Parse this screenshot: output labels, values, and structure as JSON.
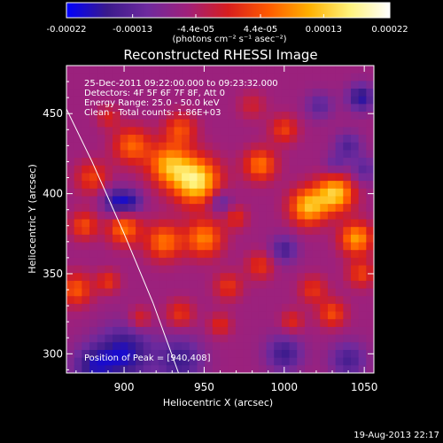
{
  "colorbar": {
    "tick_labels": [
      "-0.00022",
      "-0.00013",
      "-4.4e-05",
      "4.4e-05",
      "0.00013",
      "0.00022"
    ],
    "tick_values": [
      -0.00022,
      -0.00013,
      -4.4e-05,
      4.4e-05,
      0.00013,
      0.00022
    ],
    "range": [
      -0.00022,
      0.00022
    ],
    "unit_label": "(photons cm⁻² s⁻¹ asec⁻²)",
    "colormap": [
      "#0000ff",
      "#3a1a8c",
      "#6e2a9e",
      "#a0207a",
      "#d81e1e",
      "#ff5a00",
      "#ffb000",
      "#fff27a",
      "#ffffff"
    ]
  },
  "chart_data": {
    "type": "heatmap",
    "title": "Reconstructed RHESSI Image",
    "xlabel": "Heliocentric X (arcsec)",
    "ylabel": "Heliocentric Y (arcsec)",
    "xlim": [
      864,
      1056
    ],
    "ylim": [
      288,
      480
    ],
    "x_ticks": [
      900,
      950,
      1000,
      1050
    ],
    "y_ticks": [
      300,
      350,
      400,
      450
    ],
    "annotations": [
      "25-Dec-2011 09:22:00.000 to 09:23:32.000",
      "Detectors: 4F 5F 6F 7F 8F, Att 0",
      "Energy Range: 25.0 - 50.0 keV",
      "Clean - Total counts: 1.86E+03"
    ],
    "peak_label": "Position of Peak = [940,408]",
    "peak_position": [
      940,
      408
    ],
    "limb_curve": [
      [
        862,
        457
      ],
      [
        880,
        420
      ],
      [
        900,
        375
      ],
      [
        918,
        332
      ],
      [
        934,
        288
      ]
    ],
    "hotspots": [
      {
        "x": 945,
        "y": 408,
        "amp": 0.00022,
        "r": 10
      },
      {
        "x": 928,
        "y": 418,
        "amp": 0.00016,
        "r": 9
      },
      {
        "x": 935,
        "y": 440,
        "amp": 0.0001,
        "r": 7
      },
      {
        "x": 905,
        "y": 430,
        "amp": 0.00012,
        "r": 8
      },
      {
        "x": 900,
        "y": 378,
        "amp": 0.00013,
        "r": 7
      },
      {
        "x": 880,
        "y": 410,
        "amp": 9e-05,
        "r": 7
      },
      {
        "x": 875,
        "y": 380,
        "amp": 0.0001,
        "r": 6
      },
      {
        "x": 870,
        "y": 340,
        "amp": 0.00011,
        "r": 7
      },
      {
        "x": 890,
        "y": 345,
        "amp": 8e-05,
        "r": 5
      },
      {
        "x": 925,
        "y": 370,
        "amp": 0.00013,
        "r": 8
      },
      {
        "x": 950,
        "y": 372,
        "amp": 0.00014,
        "r": 8
      },
      {
        "x": 965,
        "y": 342,
        "amp": 8e-05,
        "r": 6
      },
      {
        "x": 985,
        "y": 418,
        "amp": 0.00013,
        "r": 7
      },
      {
        "x": 1000,
        "y": 440,
        "amp": 9e-05,
        "r": 6
      },
      {
        "x": 1015,
        "y": 392,
        "amp": 0.00018,
        "r": 8
      },
      {
        "x": 1032,
        "y": 400,
        "amp": 0.00019,
        "r": 8
      },
      {
        "x": 1045,
        "y": 372,
        "amp": 0.00016,
        "r": 7
      },
      {
        "x": 1048,
        "y": 350,
        "amp": 9e-05,
        "r": 6
      },
      {
        "x": 1018,
        "y": 340,
        "amp": 8e-05,
        "r": 6
      },
      {
        "x": 1030,
        "y": 325,
        "amp": 0.0001,
        "r": 6
      },
      {
        "x": 1005,
        "y": 320,
        "amp": 7e-05,
        "r": 5
      },
      {
        "x": 985,
        "y": 355,
        "amp": 8e-05,
        "r": 6
      },
      {
        "x": 960,
        "y": 318,
        "amp": 7e-05,
        "r": 5
      },
      {
        "x": 935,
        "y": 325,
        "amp": 8e-05,
        "r": 6
      },
      {
        "x": 910,
        "y": 322,
        "amp": 7e-05,
        "r": 5
      },
      {
        "x": 970,
        "y": 385,
        "amp": 7e-05,
        "r": 5
      },
      {
        "x": 890,
        "y": 448,
        "amp": 6e-05,
        "r": 5
      },
      {
        "x": 980,
        "y": 455,
        "amp": 5e-05,
        "r": 6
      },
      {
        "x": 1040,
        "y": 430,
        "amp": -8e-05,
        "r": 6
      },
      {
        "x": 1022,
        "y": 455,
        "amp": -7e-05,
        "r": 6
      },
      {
        "x": 900,
        "y": 300,
        "amp": -0.00013,
        "r": 12
      },
      {
        "x": 935,
        "y": 296,
        "amp": -0.0001,
        "r": 10
      },
      {
        "x": 880,
        "y": 292,
        "amp": -0.0001,
        "r": 9
      },
      {
        "x": 1000,
        "y": 300,
        "amp": -0.0001,
        "r": 8
      },
      {
        "x": 1040,
        "y": 296,
        "amp": -9e-05,
        "r": 8
      },
      {
        "x": 1048,
        "y": 460,
        "amp": -0.00012,
        "r": 6
      },
      {
        "x": 895,
        "y": 395,
        "amp": -0.00012,
        "r": 6
      },
      {
        "x": 905,
        "y": 395,
        "amp": -9e-05,
        "r": 5
      },
      {
        "x": 960,
        "y": 395,
        "amp": -8e-05,
        "r": 5
      },
      {
        "x": 1032,
        "y": 418,
        "amp": -6e-05,
        "r": 5
      },
      {
        "x": 1000,
        "y": 365,
        "amp": -9e-05,
        "r": 6
      },
      {
        "x": 1050,
        "y": 415,
        "amp": -7e-05,
        "r": 6
      }
    ]
  },
  "footer": {
    "timestamp": "19-Aug-2013 22:17"
  }
}
